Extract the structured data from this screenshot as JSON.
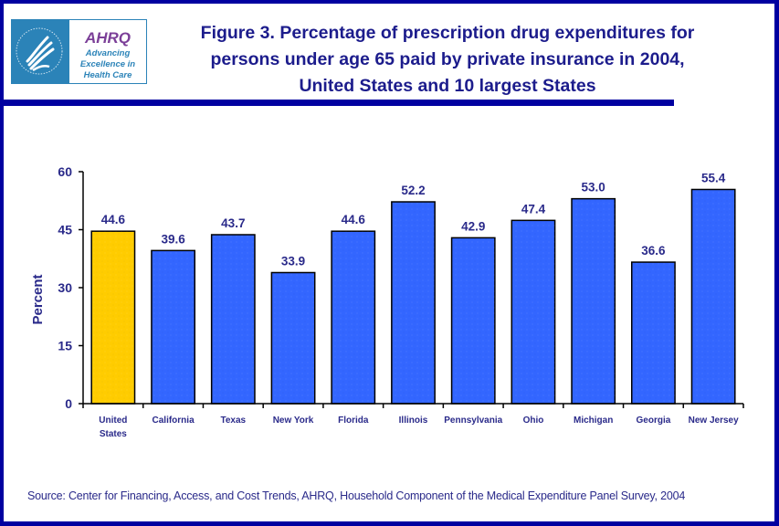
{
  "logo": {
    "agency": "AHRQ",
    "tagline": [
      "Advancing",
      "Excellence in",
      "Health Care"
    ],
    "seal_icon": "hhs-eagle-icon"
  },
  "colors": {
    "frame": "#0000a0",
    "text": "#2a2a8a",
    "highlight_bar": "#ffcc00",
    "bar": "#3366ff"
  },
  "source": "Source: Center for Financing, Access, and Cost Trends, AHRQ, Household Component of the Medical Expenditure Panel Survey, 2004",
  "chart_data": {
    "type": "bar",
    "title": "Figure 3. Percentage of prescription drug expenditures for persons under age 65 paid by private insurance in 2004, United States and 10 largest States",
    "title_lines": [
      "Figure 3. Percentage of prescription drug expenditures for",
      "persons under age 65 paid by private insurance in 2004,",
      "United States and 10 largest States"
    ],
    "xlabel": "",
    "ylabel": "Percent",
    "ylim": [
      0,
      60
    ],
    "yticks": [
      0,
      15,
      30,
      45,
      60
    ],
    "grid": false,
    "legend": "none",
    "categories": [
      "United States",
      "California",
      "Texas",
      "New York",
      "Florida",
      "Illinois",
      "Pennsylvania",
      "Ohio",
      "Michigan",
      "Georgia",
      "New Jersey"
    ],
    "category_lines": [
      [
        "United",
        "States"
      ],
      [
        "California"
      ],
      [
        "Texas"
      ],
      [
        "New York"
      ],
      [
        "Florida"
      ],
      [
        "Illinois"
      ],
      [
        "Pennsylvania"
      ],
      [
        "Ohio"
      ],
      [
        "Michigan"
      ],
      [
        "Georgia"
      ],
      [
        "New Jersey"
      ]
    ],
    "values": [
      44.6,
      39.6,
      43.7,
      33.9,
      44.6,
      52.2,
      42.9,
      47.4,
      53.0,
      36.6,
      55.4
    ],
    "value_labels": [
      "44.6",
      "39.6",
      "43.7",
      "33.9",
      "44.6",
      "52.2",
      "42.9",
      "47.4",
      "53.0",
      "36.6",
      "55.4"
    ],
    "highlight_index": 0
  }
}
